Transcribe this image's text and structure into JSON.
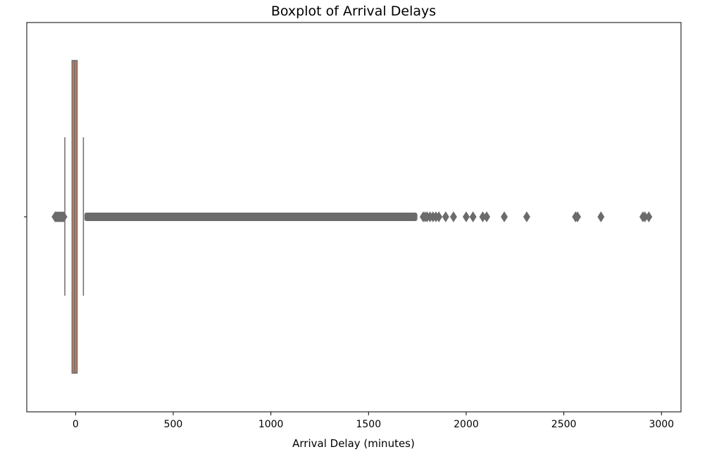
{
  "chart_data": {
    "type": "boxplot",
    "title": "Boxplot of Arrival Delays",
    "xlabel": "Arrival Delay (minutes)",
    "ylabel": "",
    "xlim": [
      -250,
      3100
    ],
    "xticks": [
      0,
      500,
      1000,
      1500,
      2000,
      2500,
      3000
    ],
    "box": {
      "q1": -18,
      "median": -5,
      "q3": 8,
      "whisker_low": -55,
      "whisker_high": 40,
      "box_color": "#c87d5e",
      "line_color": "#6b6b6b"
    },
    "outliers_low": [
      -105,
      -100,
      -95,
      -90,
      -85,
      -80,
      -75,
      -70,
      -65,
      -60
    ],
    "outlier_band_high": [
      45,
      1750
    ],
    "outliers_high": [
      1780,
      1790,
      1800,
      1815,
      1830,
      1845,
      1860,
      1895,
      1935,
      2000,
      2035,
      2085,
      2105,
      2195,
      2310,
      2560,
      2570,
      2690,
      2905,
      2915,
      2935
    ],
    "grid": false,
    "legend": "none"
  }
}
